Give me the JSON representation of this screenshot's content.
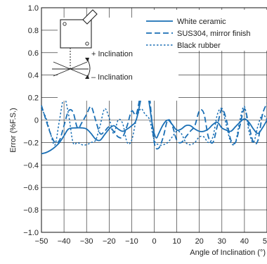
{
  "chart_data": {
    "type": "line",
    "xlabel": "Angle of Inclination (°)",
    "ylabel": "Error (%F.S.)",
    "xlim": [
      -50,
      50
    ],
    "ylim": [
      -1.0,
      1.0
    ],
    "x_ticks": [
      "−50",
      "−40",
      "−30",
      "−20",
      "−10",
      "0",
      "10",
      "20",
      "30",
      "40",
      "50"
    ],
    "y_ticks": [
      "1.0",
      "0.8",
      "0.6",
      "0.4",
      "0.2",
      "0",
      "−0.2",
      "−0.4",
      "−0.6",
      "−0.8",
      "−1.0"
    ],
    "grid": true,
    "legend_position": "top-right",
    "series": [
      {
        "name": "White ceramic",
        "style": "solid",
        "color": "#1a6fb5",
        "x": [
          -50,
          -48,
          -46,
          -44,
          -42,
          -40,
          -38,
          -35,
          -32,
          -30,
          -28,
          -26,
          -24,
          -22,
          -20,
          -18,
          -16,
          -14,
          -12,
          -10,
          -8,
          -6,
          -5,
          -4,
          -3,
          -2,
          -1,
          0,
          1,
          2,
          4,
          6,
          8,
          10,
          12,
          14,
          16,
          18,
          20,
          22,
          24,
          26,
          28,
          30,
          32,
          34,
          36,
          38,
          40,
          42,
          44,
          46,
          48,
          50
        ],
        "y": [
          -0.3,
          -0.29,
          -0.27,
          -0.24,
          -0.2,
          -0.14,
          -0.08,
          -0.07,
          -0.07,
          -0.08,
          -0.12,
          -0.17,
          -0.18,
          -0.13,
          -0.08,
          -0.05,
          -0.08,
          -0.1,
          -0.08,
          -0.05,
          0.0,
          0.18,
          0.31,
          0.32,
          0.25,
          0.12,
          -0.02,
          -0.12,
          -0.16,
          -0.12,
          -0.04,
          0.0,
          -0.04,
          -0.09,
          -0.08,
          -0.05,
          -0.05,
          -0.08,
          -0.1,
          -0.1,
          -0.08,
          -0.04,
          -0.02,
          -0.07,
          -0.09,
          -0.1,
          -0.06,
          -0.02,
          0.01,
          -0.02,
          -0.08,
          -0.12,
          -0.07,
          0.0
        ]
      },
      {
        "name": "SUS304, mirror finish",
        "style": "dashed",
        "color": "#1a6fb5",
        "x": [
          -50,
          -48,
          -46,
          -44,
          -42,
          -40,
          -38,
          -36,
          -34,
          -32,
          -30,
          -28,
          -26,
          -24,
          -22,
          -20,
          -18,
          -16,
          -14,
          -12,
          -10,
          -8,
          -6,
          -5,
          -4,
          -3,
          -2,
          0,
          2,
          4,
          6,
          8,
          10,
          12,
          14,
          16,
          18,
          20,
          22,
          24,
          26,
          28,
          30,
          32,
          34,
          36,
          38,
          40,
          42,
          44,
          46,
          48,
          50
        ],
        "y": [
          0.13,
          0.0,
          -0.12,
          -0.2,
          -0.18,
          -0.05,
          0.08,
          0.07,
          -0.07,
          -0.02,
          0.05,
          0.12,
          0.0,
          -0.12,
          -0.1,
          -0.06,
          -0.1,
          -0.15,
          -0.15,
          -0.05,
          0.08,
          0.05,
          0.25,
          0.42,
          0.45,
          0.4,
          0.2,
          -0.2,
          -0.25,
          -0.15,
          0.0,
          -0.05,
          -0.18,
          -0.2,
          -0.15,
          -0.1,
          -0.05,
          0.08,
          0.06,
          -0.15,
          -0.2,
          -0.05,
          0.1,
          0.0,
          -0.18,
          -0.2,
          -0.05,
          0.1,
          -0.05,
          -0.2,
          -0.18,
          0.05,
          0.15
        ]
      },
      {
        "name": "Black rubber",
        "style": "dotted",
        "color": "#1a6fb5",
        "x": [
          -50,
          -48,
          -46,
          -44,
          -42,
          -40,
          -38,
          -36,
          -34,
          -32,
          -30,
          -28,
          -26,
          -24,
          -22,
          -20,
          -18,
          -16,
          -14,
          -12,
          -10,
          -8,
          -6,
          -4,
          -2,
          0,
          2,
          4,
          6,
          8,
          10,
          12,
          14,
          16,
          18,
          20,
          22,
          24,
          26,
          28,
          30,
          32,
          34,
          36,
          38,
          40,
          42,
          44,
          46,
          48,
          50
        ],
        "y": [
          0.1,
          0.02,
          -0.12,
          -0.22,
          0.0,
          0.2,
          0.05,
          -0.2,
          -0.2,
          -0.22,
          -0.22,
          -0.2,
          -0.18,
          -0.05,
          0.1,
          0.02,
          -0.12,
          0.0,
          -0.03,
          -0.2,
          -0.18,
          0.0,
          0.1,
          0.05,
          0.0,
          -0.18,
          -0.22,
          -0.22,
          -0.2,
          -0.15,
          -0.1,
          -0.12,
          -0.2,
          -0.22,
          -0.2,
          -0.15,
          -0.15,
          -0.2,
          -0.15,
          0.05,
          0.1,
          -0.05,
          -0.2,
          -0.2,
          0.0,
          0.12,
          -0.1,
          -0.2,
          -0.05,
          0.05,
          0.0
        ]
      }
    ],
    "annotations": [
      "+ Inclination",
      "– Inclination"
    ]
  }
}
